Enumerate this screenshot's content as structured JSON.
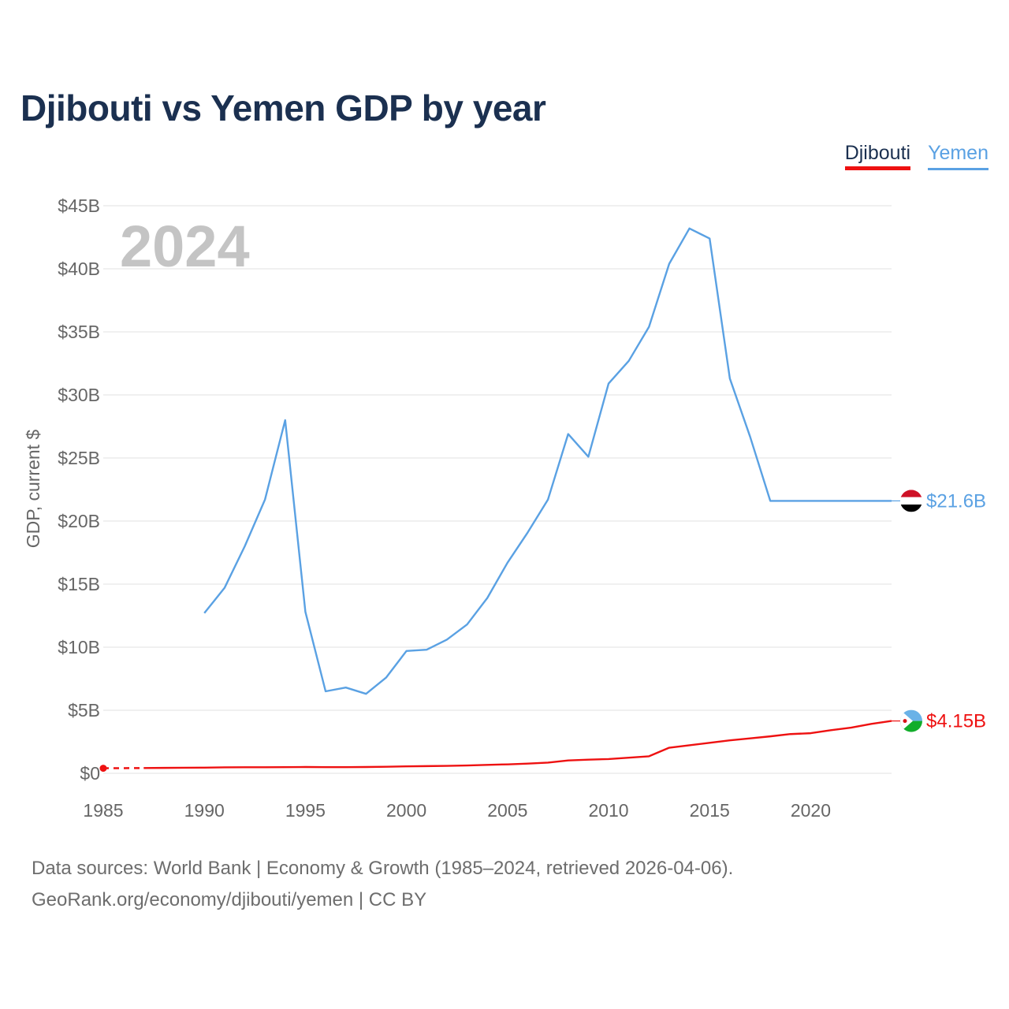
{
  "chart_data": {
    "type": "line",
    "title": "Djibouti vs Yemen GDP by year",
    "year_label": "2024",
    "ylabel": "GDP, current $",
    "xlim": [
      1985,
      2024
    ],
    "ylim": [
      0,
      45
    ],
    "x_ticks": [
      1985,
      1990,
      1995,
      2000,
      2005,
      2010,
      2015,
      2020
    ],
    "y_ticks": [
      {
        "value": 0,
        "label": "$0"
      },
      {
        "value": 5,
        "label": "$5B"
      },
      {
        "value": 10,
        "label": "$10B"
      },
      {
        "value": 15,
        "label": "$15B"
      },
      {
        "value": 20,
        "label": "$20B"
      },
      {
        "value": 25,
        "label": "$25B"
      },
      {
        "value": 30,
        "label": "$30B"
      },
      {
        "value": 35,
        "label": "$35B"
      },
      {
        "value": 40,
        "label": "$40B"
      },
      {
        "value": 45,
        "label": "$45B"
      }
    ],
    "series": [
      {
        "name": "Djibouti",
        "color": "#ee1111",
        "end_label": "$4.15B",
        "flag_icon": "djibouti-flag-icon",
        "dashed_segment": {
          "x": [
            1985,
            1987
          ],
          "values": [
            0.4,
            0.42
          ]
        },
        "x": [
          1987,
          1988,
          1989,
          1990,
          1991,
          1992,
          1993,
          1994,
          1995,
          1996,
          1997,
          1998,
          1999,
          2000,
          2001,
          2002,
          2003,
          2004,
          2005,
          2006,
          2007,
          2008,
          2009,
          2010,
          2011,
          2012,
          2013,
          2014,
          2015,
          2016,
          2017,
          2018,
          2019,
          2020,
          2021,
          2022,
          2023,
          2024
        ],
        "values": [
          0.42,
          0.43,
          0.44,
          0.45,
          0.47,
          0.48,
          0.48,
          0.49,
          0.5,
          0.49,
          0.49,
          0.5,
          0.52,
          0.55,
          0.57,
          0.59,
          0.62,
          0.67,
          0.71,
          0.77,
          0.85,
          1.02,
          1.08,
          1.13,
          1.24,
          1.35,
          2.03,
          2.22,
          2.42,
          2.61,
          2.77,
          2.93,
          3.11,
          3.18,
          3.42,
          3.62,
          3.92,
          4.15
        ]
      },
      {
        "name": "Yemen",
        "color": "#5aa1e3",
        "end_label": "$21.6B",
        "flag_icon": "yemen-flag-icon",
        "x": [
          1990,
          1991,
          1992,
          1993,
          1994,
          1995,
          1996,
          1997,
          1998,
          1999,
          2000,
          2001,
          2002,
          2003,
          2004,
          2005,
          2006,
          2007,
          2008,
          2009,
          2010,
          2011,
          2012,
          2013,
          2014,
          2015,
          2016,
          2017,
          2018,
          2019,
          2020,
          2021,
          2022,
          2023,
          2024
        ],
        "values": [
          12.7,
          14.7,
          18.0,
          21.7,
          28.0,
          12.8,
          6.5,
          6.8,
          6.3,
          7.6,
          9.7,
          9.8,
          10.6,
          11.8,
          13.9,
          16.7,
          19.1,
          21.7,
          26.9,
          25.1,
          30.9,
          32.7,
          35.4,
          40.4,
          43.2,
          42.4,
          31.3,
          26.7,
          21.6,
          21.6,
          21.6,
          21.6,
          21.6,
          21.6,
          21.6
        ]
      }
    ]
  },
  "footer": {
    "line1": "Data sources: World Bank | Economy & Growth (1985–2024, retrieved 2026-04-06).",
    "line2": "GeoRank.org/economy/djibouti/yemen | CC BY"
  }
}
